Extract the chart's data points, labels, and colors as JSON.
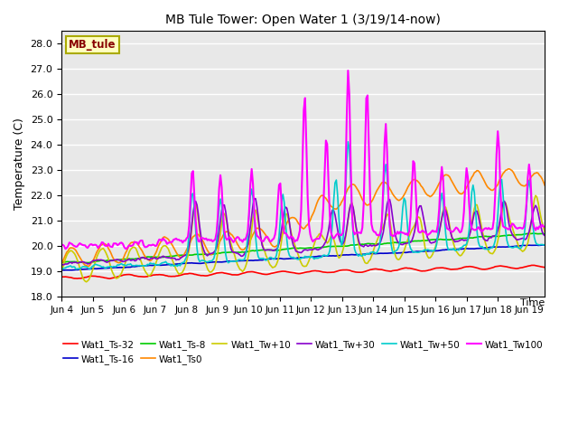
{
  "title": "MB Tule Tower: Open Water 1 (3/19/14-now)",
  "ylabel": "Temperature (C)",
  "xlabel": "Time",
  "ylim": [
    18.0,
    28.5
  ],
  "yticks": [
    18.0,
    19.0,
    20.0,
    21.0,
    22.0,
    23.0,
    24.0,
    25.0,
    26.0,
    27.0,
    28.0
  ],
  "xtick_labels": [
    "Jun 4",
    "Jun 5",
    "Jun 6",
    "Jun 7",
    "Jun 8",
    "Jun 9",
    "Jun 10",
    "Jun 11",
    "Jun 12",
    "Jun 13",
    "Jun 14",
    "Jun 15",
    "Jun 16",
    "Jun 17",
    "Jun 18",
    "Jun 19"
  ],
  "legend_box_text": "MB_tule",
  "legend_box_facecolor": "#FFFFC0",
  "legend_box_edgecolor": "#AAAA00",
  "legend_box_textcolor": "#880000",
  "background_color": "#E8E8E8",
  "series": [
    {
      "label": "Wat1_Ts-32",
      "color": "#FF0000",
      "lw": 1.2
    },
    {
      "label": "Wat1_Ts-16",
      "color": "#0000CC",
      "lw": 1.2
    },
    {
      "label": "Wat1_Ts-8",
      "color": "#00CC00",
      "lw": 1.2
    },
    {
      "label": "Wat1_Ts0",
      "color": "#FF8800",
      "lw": 1.2
    },
    {
      "label": "Wat1_Tw+10",
      "color": "#CCCC00",
      "lw": 1.2
    },
    {
      "label": "Wat1_Tw+30",
      "color": "#8800CC",
      "lw": 1.2
    },
    {
      "label": "Wat1_Tw+50",
      "color": "#00CCCC",
      "lw": 1.2
    },
    {
      "label": "Wat1_Tw100",
      "color": "#FF00FF",
      "lw": 1.5
    }
  ]
}
